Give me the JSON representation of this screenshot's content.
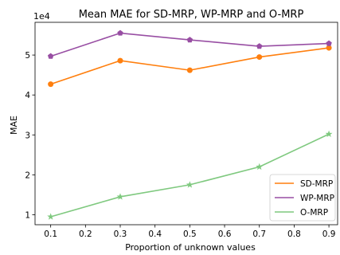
{
  "chart_data": {
    "type": "line",
    "title": "Mean MAE for SD-MRP, WP-MRP and O-MRP",
    "xlabel": "Proportion of unknown values",
    "ylabel": "MAE",
    "y_multiplier": "1e4",
    "x": [
      0.1,
      0.3,
      0.5,
      0.7,
      0.9
    ],
    "xlim": [
      0.055,
      0.925
    ],
    "ylim": [
      0.75,
      5.82
    ],
    "x_ticks": [
      "0.1",
      "0.2",
      "0.3",
      "0.4",
      "0.5",
      "0.6",
      "0.7",
      "0.8",
      "0.9"
    ],
    "y_ticks": [
      "1",
      "2",
      "3",
      "4",
      "5"
    ],
    "grid": false,
    "legend_position": "lower right",
    "series": [
      {
        "name": "SD-MRP",
        "color": "#ff7f0e",
        "marker": "circle",
        "values": [
          4.27,
          4.86,
          4.62,
          4.95,
          5.18
        ]
      },
      {
        "name": "WP-MRP",
        "color": "#984ea3",
        "marker": "pentagon",
        "values": [
          4.97,
          5.55,
          5.38,
          5.22,
          5.29
        ]
      },
      {
        "name": "O-MRP",
        "color": "#7fc97f",
        "marker": "star",
        "values": [
          0.95,
          1.45,
          1.75,
          2.2,
          3.02
        ]
      }
    ]
  }
}
